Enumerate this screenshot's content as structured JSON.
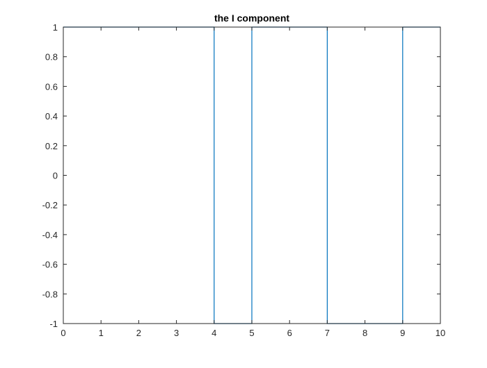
{
  "chart_data": {
    "type": "line",
    "title": "the I component",
    "xlabel": "",
    "ylabel": "",
    "xlim": [
      0,
      10
    ],
    "ylim": [
      -1,
      1
    ],
    "xticks": [
      0,
      1,
      2,
      3,
      4,
      5,
      6,
      7,
      8,
      9,
      10
    ],
    "xtick_labels": [
      "0",
      "1",
      "2",
      "3",
      "4",
      "5",
      "6",
      "7",
      "8",
      "9",
      "10"
    ],
    "yticks": [
      1,
      0.8,
      0.6,
      0.4,
      0.2,
      0,
      -0.2,
      -0.4,
      -0.6,
      -0.8,
      -1
    ],
    "ytick_labels": [
      "1",
      "0.8",
      "0.6",
      "0.4",
      "0.2",
      "0",
      "-0.2",
      "-0.4",
      "-0.6",
      "-0.8",
      "-1"
    ],
    "grid": false,
    "series": [
      {
        "color": "#0072BD",
        "step": true,
        "x": [
          0,
          4,
          4,
          5,
          5,
          7,
          7,
          9,
          9,
          10
        ],
        "y": [
          1,
          1,
          -1,
          -1,
          1,
          1,
          -1,
          -1,
          1,
          1
        ]
      }
    ]
  }
}
